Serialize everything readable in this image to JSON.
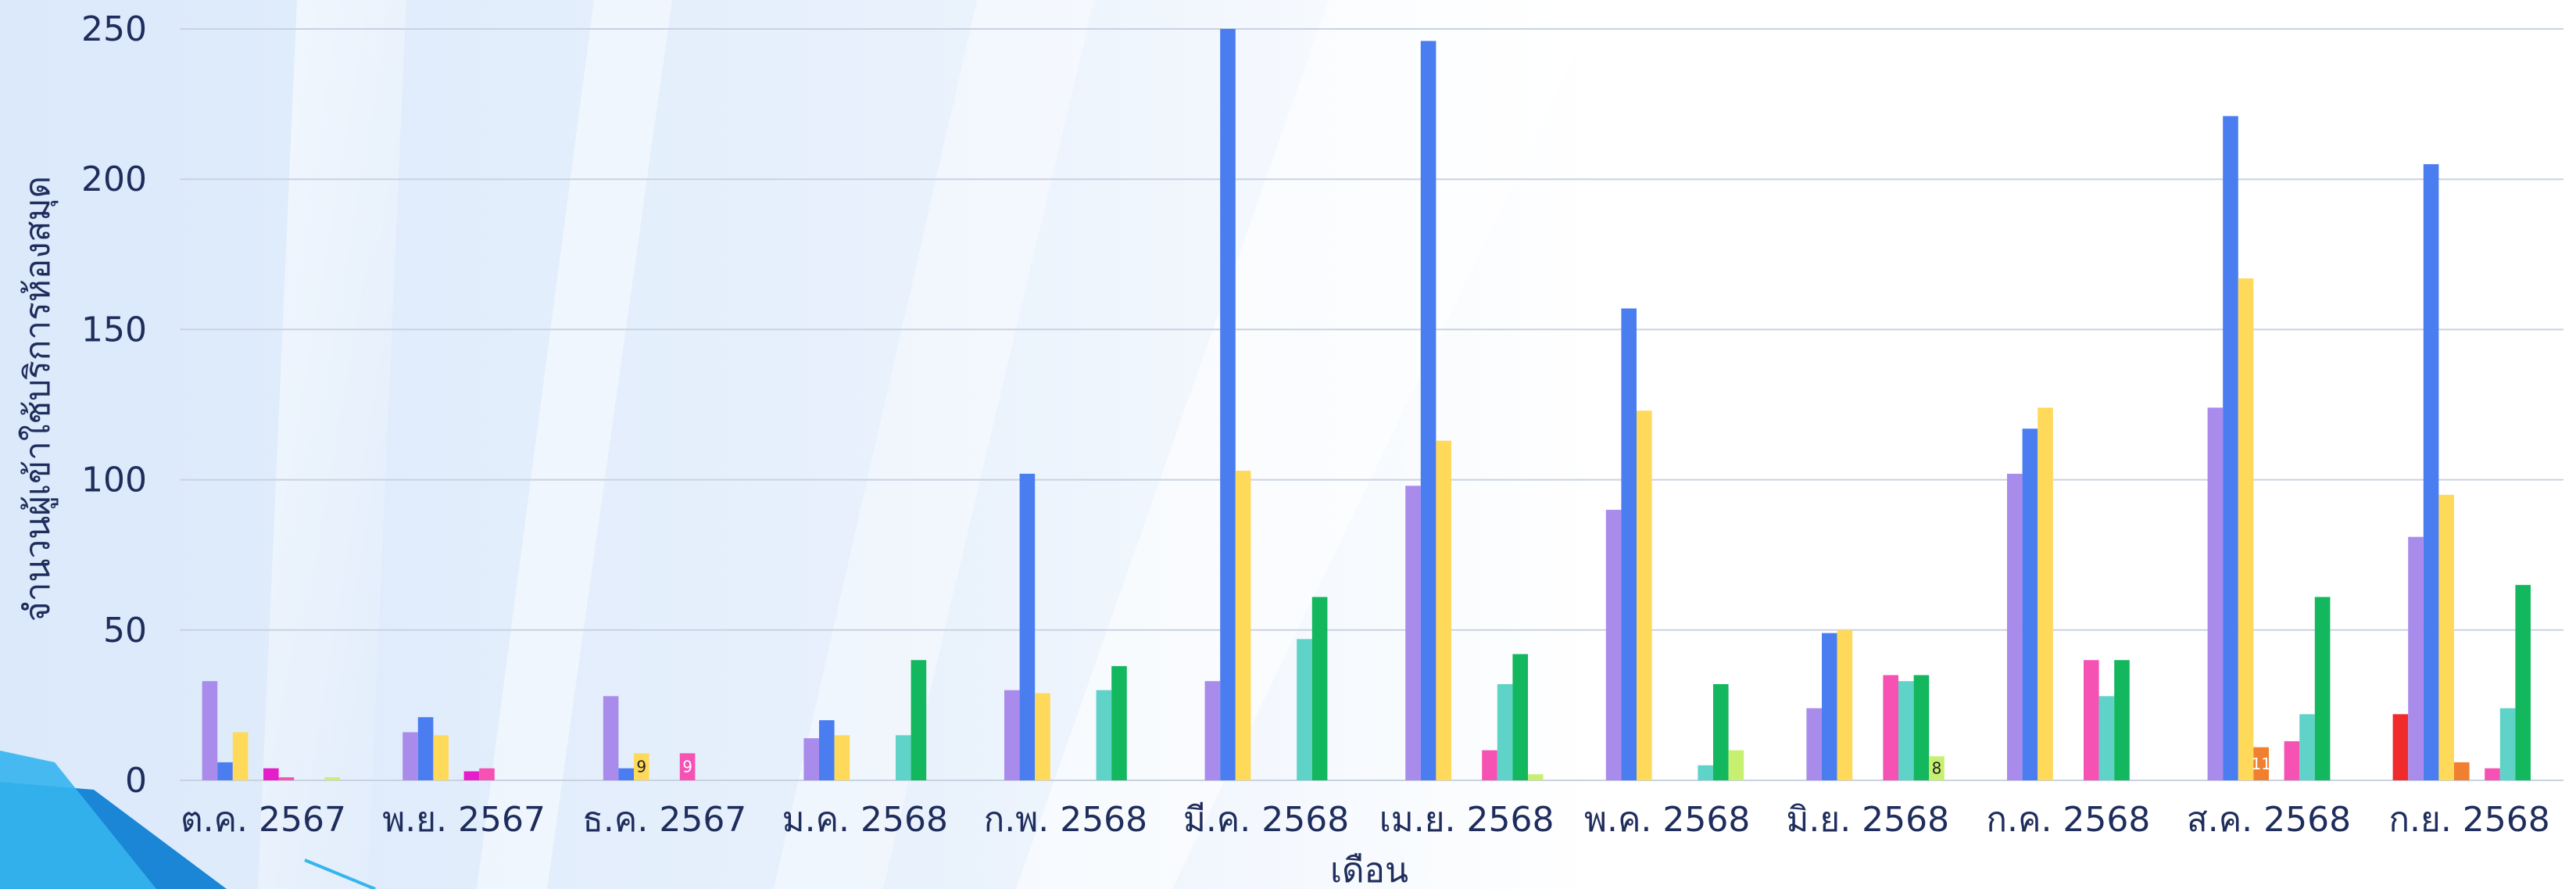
{
  "chart_data": {
    "type": "bar",
    "title": "",
    "xlabel": "เดือน",
    "ylabel": "จำนวนผู้เข้าใช้บริการห้องสมุด",
    "ylim": [
      0,
      250
    ],
    "yticks": [
      0,
      50,
      100,
      150,
      200,
      250
    ],
    "grid": true,
    "categories": [
      "ต.ค. 2567",
      "พ.ย. 2567",
      "ธ.ค. 2567",
      "ม.ค. 2568",
      "ก.พ. 2568",
      "มี.ค. 2568",
      "เม.ย. 2568",
      "พ.ค. 2568",
      "มิ.ย. 2568",
      "ก.ค. 2568",
      "ส.ค. 2568",
      "ก.ย. 2568"
    ],
    "series": [
      {
        "color": "#ef2b2b",
        "values": [
          0,
          0,
          0,
          0,
          0,
          0,
          0,
          0,
          0,
          0,
          0,
          22
        ]
      },
      {
        "color": "#a98bec",
        "values": [
          33,
          16,
          28,
          14,
          30,
          33,
          98,
          90,
          24,
          102,
          124,
          81
        ]
      },
      {
        "color": "#4a7df0",
        "values": [
          6,
          21,
          4,
          20,
          102,
          250,
          246,
          157,
          49,
          117,
          221,
          205
        ]
      },
      {
        "color": "#ffd95a",
        "values": [
          16,
          15,
          9,
          15,
          29,
          103,
          113,
          123,
          50,
          124,
          167,
          95
        ]
      },
      {
        "color": "#f07f2f",
        "values": [
          0,
          0,
          0,
          0,
          0,
          0,
          0,
          0,
          0,
          0,
          11,
          6
        ]
      },
      {
        "color": "#e51ec9",
        "values": [
          4,
          3,
          0,
          0,
          0,
          0,
          0,
          0,
          0,
          0,
          0,
          0
        ]
      },
      {
        "color": "#f552b4",
        "values": [
          1,
          4,
          9,
          0,
          0,
          0,
          10,
          0,
          35,
          40,
          13,
          4
        ]
      },
      {
        "color": "#5fd3c8",
        "values": [
          0,
          0,
          0,
          15,
          30,
          47,
          32,
          5,
          33,
          28,
          22,
          24
        ]
      },
      {
        "color": "#12b75e",
        "values": [
          0,
          0,
          0,
          40,
          38,
          61,
          42,
          32,
          35,
          40,
          61,
          65
        ]
      },
      {
        "color": "#c7f070",
        "values": [
          1,
          0,
          0,
          0,
          0,
          0,
          2,
          10,
          8,
          0,
          0,
          0
        ]
      }
    ],
    "data_labels": [
      {
        "category": 2,
        "series": 3,
        "text": "9"
      },
      {
        "category": 2,
        "series": 6,
        "text": "9"
      },
      {
        "category": 8,
        "series": 9,
        "text": "8"
      },
      {
        "category": 10,
        "series": 4,
        "text": "11"
      }
    ]
  }
}
